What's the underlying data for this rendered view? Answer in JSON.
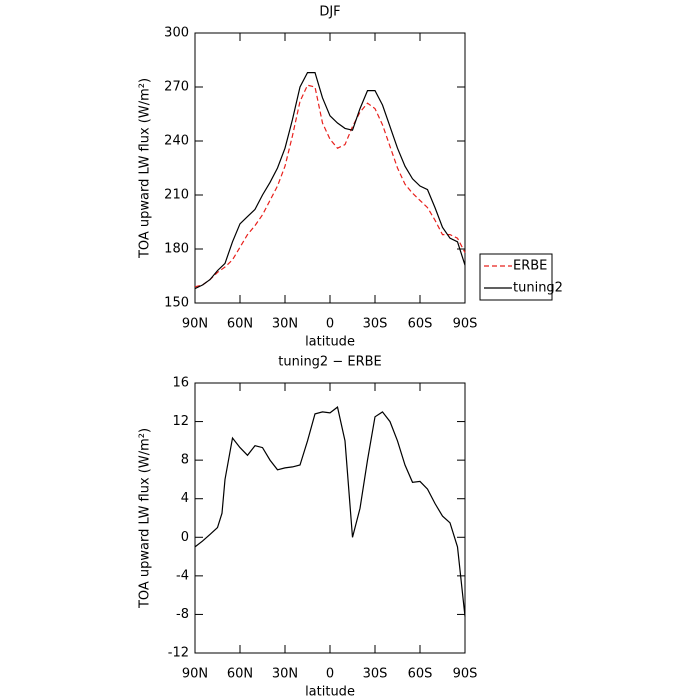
{
  "chart_data": [
    {
      "type": "line",
      "title": "DJF",
      "xlabel": "latitude",
      "ylabel": "TOA upward LW flux (W/m²)",
      "x": [
        90,
        85,
        80,
        75,
        70,
        65,
        60,
        55,
        50,
        45,
        40,
        35,
        30,
        25,
        20,
        15,
        10,
        5,
        0,
        -5,
        -10,
        -15,
        -20,
        -25,
        -30,
        -35,
        -40,
        -45,
        -50,
        -55,
        -60,
        -65,
        -70,
        -75,
        -80,
        -85,
        -90
      ],
      "series": [
        {
          "name": "ERBE",
          "color": "#e8201c",
          "dashed": true,
          "values": [
            159,
            160,
            163,
            167,
            170,
            174,
            181,
            188,
            193,
            199,
            207,
            215,
            226,
            243,
            262,
            271,
            270,
            250,
            241,
            236,
            238,
            248,
            256,
            261,
            258,
            249,
            237,
            225,
            216,
            211,
            207,
            203,
            196,
            188,
            188,
            186,
            178
          ]
        },
        {
          "name": "tuning2",
          "color": "#000000",
          "dashed": false,
          "values": [
            158,
            160,
            163,
            168,
            172,
            184,
            194,
            198,
            202,
            210,
            217,
            225,
            236,
            252,
            270,
            278,
            278,
            264,
            254,
            250,
            247,
            246,
            258,
            268,
            268,
            260,
            248,
            236,
            226,
            219,
            215,
            213,
            203,
            192,
            186,
            184,
            171
          ]
        }
      ],
      "xlim": [
        90,
        -90
      ],
      "xticks": [
        {
          "value": 90,
          "label": "90N"
        },
        {
          "value": 60,
          "label": "60N"
        },
        {
          "value": 30,
          "label": "30N"
        },
        0,
        {
          "value": -30,
          "label": "30S"
        },
        {
          "value": -60,
          "label": "60S"
        },
        {
          "value": -90,
          "label": "90S"
        }
      ],
      "ylim": [
        150,
        300
      ],
      "yticks": [
        150,
        180,
        210,
        240,
        270,
        300
      ],
      "legend": "right"
    },
    {
      "type": "line",
      "title": "tuning2 − ERBE",
      "xlabel": "latitude",
      "ylabel": "TOA upward LW flux (W/m²)",
      "x": [
        90,
        85,
        80,
        75,
        72,
        70,
        65,
        60,
        55,
        50,
        45,
        40,
        35,
        30,
        25,
        20,
        15,
        10,
        5,
        0,
        -5,
        -10,
        -15,
        -20,
        -25,
        -30,
        -35,
        -40,
        -45,
        -50,
        -55,
        -60,
        -65,
        -70,
        -75,
        -80,
        -85,
        -90
      ],
      "values": [
        -1,
        -0.4,
        0.3,
        1,
        2.5,
        6,
        10.3,
        9.3,
        8.5,
        9.5,
        9.3,
        8,
        7,
        7.2,
        7.3,
        7.5,
        10,
        12.8,
        13,
        12.9,
        13.5,
        10,
        0,
        3,
        8,
        12.5,
        13,
        12,
        10,
        7.5,
        5.7,
        5.8,
        5,
        3.5,
        2.2,
        1.5,
        -1,
        -8.2
      ],
      "color": "#000000",
      "xlim": [
        90,
        -90
      ],
      "xticks": [
        {
          "value": 90,
          "label": "90N"
        },
        {
          "value": 60,
          "label": "60N"
        },
        {
          "value": 30,
          "label": "30N"
        },
        0,
        {
          "value": -30,
          "label": "30S"
        },
        {
          "value": -60,
          "label": "60S"
        },
        {
          "value": -90,
          "label": "90S"
        }
      ],
      "ylim": [
        -12,
        16
      ],
      "yticks": [
        -12,
        -8,
        -4,
        0,
        4,
        8,
        12,
        16
      ]
    }
  ]
}
